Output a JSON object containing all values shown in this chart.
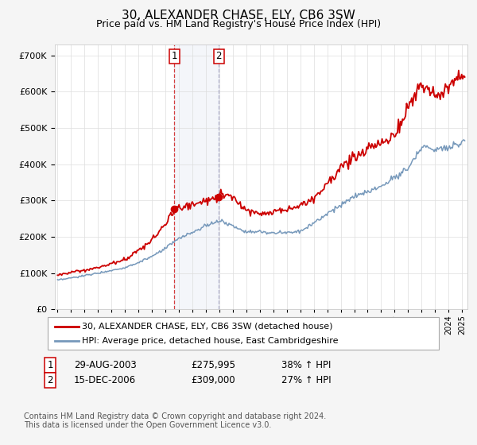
{
  "title": "30, ALEXANDER CHASE, ELY, CB6 3SW",
  "subtitle": "Price paid vs. HM Land Registry's House Price Index (HPI)",
  "title_fontsize": 11,
  "subtitle_fontsize": 9,
  "bg_color": "#f5f5f5",
  "plot_bg_color": "#ffffff",
  "grid_color": "#dddddd",
  "red_color": "#cc0000",
  "blue_color": "#7799bb",
  "sale1_year": 2003.66,
  "sale1_price": 275995,
  "sale2_year": 2006.96,
  "sale2_price": 309000,
  "sale1_label": "1",
  "sale2_label": "2",
  "sale1_text": "29-AUG-2003",
  "sale1_price_text": "£275,995",
  "sale1_hpi_text": "38% ↑ HPI",
  "sale2_text": "15-DEC-2006",
  "sale2_price_text": "£309,000",
  "sale2_hpi_text": "27% ↑ HPI",
  "legend_line1": "30, ALEXANDER CHASE, ELY, CB6 3SW (detached house)",
  "legend_line2": "HPI: Average price, detached house, East Cambridgeshire",
  "footer1": "Contains HM Land Registry data © Crown copyright and database right 2024.",
  "footer2": "This data is licensed under the Open Government Licence v3.0.",
  "ylim_min": 0,
  "ylim_max": 730000,
  "xlabel_fontsize": 7
}
